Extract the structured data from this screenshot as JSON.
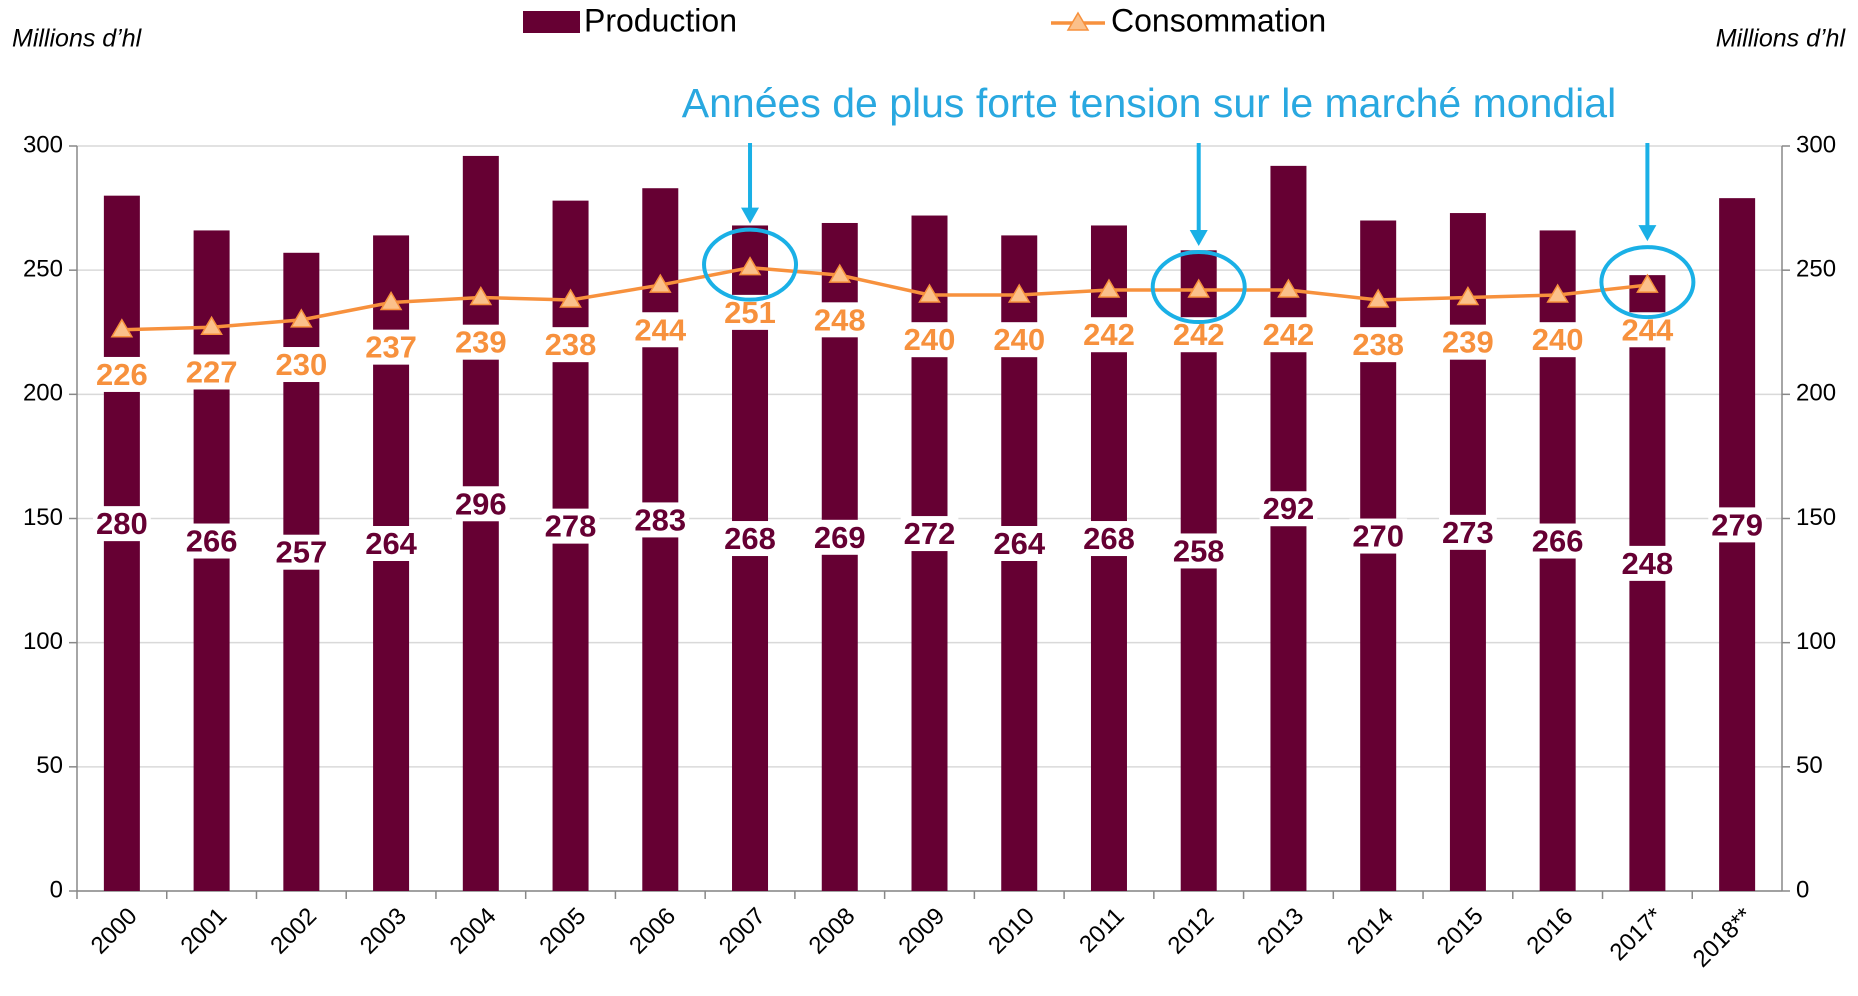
{
  "chart_data": {
    "type": "bar",
    "annotation": "Années de plus forte tension sur le marché mondial",
    "y_label": "Millions d’hl",
    "y2_label": "Millions d’hl",
    "categories": [
      "2000",
      "2001",
      "2002",
      "2003",
      "2004",
      "2005",
      "2006",
      "2007",
      "2008",
      "2009",
      "2010",
      "2011",
      "2012",
      "2013",
      "2014",
      "2015",
      "2016",
      "2017*",
      "2018**"
    ],
    "series": [
      {
        "name": "Production",
        "type": "bar",
        "color": "#660033",
        "values": [
          280,
          266,
          257,
          264,
          296,
          278,
          283,
          268,
          269,
          272,
          264,
          268,
          258,
          292,
          270,
          273,
          266,
          248,
          279
        ]
      },
      {
        "name": "Consommation",
        "type": "line",
        "axis": "y2",
        "color": "#f7913d",
        "marker_color": "#fbc08a",
        "values": [
          226,
          227,
          230,
          237,
          239,
          238,
          244,
          251,
          248,
          240,
          240,
          242,
          242,
          242,
          238,
          239,
          240,
          244,
          null
        ]
      }
    ],
    "ylim": [
      0,
      300
    ],
    "yticks": [
      0,
      50,
      100,
      150,
      200,
      250,
      300
    ],
    "y2lim": [
      0,
      300
    ],
    "y2ticks": [
      0,
      50,
      100,
      150,
      200,
      250,
      300
    ],
    "grid": true,
    "legend": "top"
  }
}
